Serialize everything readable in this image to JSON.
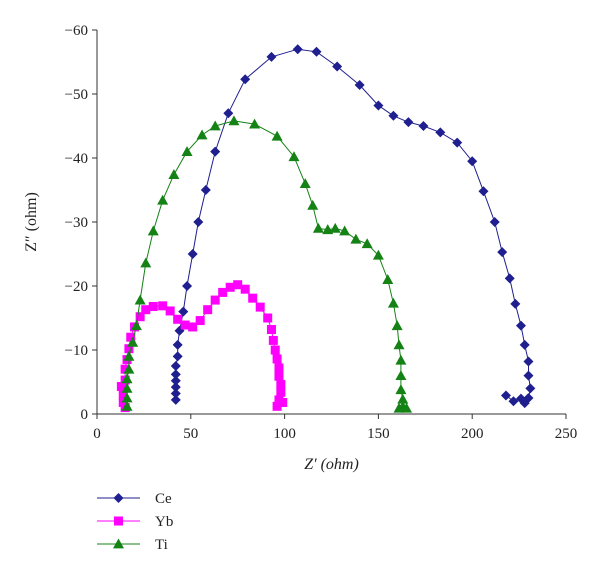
{
  "chart_data": {
    "type": "scatter",
    "xlabel": "Z′ (ohm)",
    "ylabel": "Z″ (ohm)",
    "xlim": [
      0,
      250
    ],
    "ylim": [
      0,
      -60
    ],
    "x_ticks": [
      0,
      50,
      100,
      150,
      200,
      250
    ],
    "y_ticks": [
      0,
      -10,
      -20,
      -30,
      -40,
      -50,
      -60
    ],
    "x_tick_labels": [
      "0",
      "50",
      "100",
      "150",
      "200",
      "250"
    ],
    "y_tick_labels": [
      "0",
      "−10",
      "−20",
      "−30",
      "−40",
      "−50",
      "−60"
    ],
    "grid": false,
    "legend_position": "bottom-left",
    "series": [
      {
        "name": "Ce",
        "color": "#1f1f8f",
        "marker": "diamond",
        "points": [
          [
            42,
            -2.2
          ],
          [
            42,
            -3.2
          ],
          [
            42,
            -4.2
          ],
          [
            42,
            -5.2
          ],
          [
            42,
            -6.2
          ],
          [
            42,
            -7.5
          ],
          [
            43,
            -9
          ],
          [
            43,
            -10.8
          ],
          [
            44,
            -13
          ],
          [
            46,
            -16
          ],
          [
            48,
            -20
          ],
          [
            51,
            -25
          ],
          [
            54,
            -30
          ],
          [
            58,
            -35
          ],
          [
            63,
            -41
          ],
          [
            70,
            -47
          ],
          [
            79,
            -52.3
          ],
          [
            93,
            -55.8
          ],
          [
            107,
            -57
          ],
          [
            117,
            -56.6
          ],
          [
            128,
            -54.3
          ],
          [
            140,
            -51.4
          ],
          [
            150,
            -48.2
          ],
          [
            158,
            -46.6
          ],
          [
            166,
            -45.6
          ],
          [
            174,
            -45
          ],
          [
            183,
            -44
          ],
          [
            192,
            -42.4
          ],
          [
            200,
            -39.5
          ],
          [
            206,
            -34.8
          ],
          [
            212,
            -30
          ],
          [
            216,
            -25.3
          ],
          [
            220,
            -21.2
          ],
          [
            223,
            -17.2
          ],
          [
            226,
            -13.8
          ],
          [
            228,
            -10.8
          ],
          [
            230,
            -8.2
          ],
          [
            230,
            -6
          ],
          [
            231,
            -4
          ],
          [
            230,
            -2.5
          ],
          [
            228,
            -1.7
          ],
          [
            226,
            -2.4
          ],
          [
            222,
            -2
          ],
          [
            218,
            -2.9
          ]
        ]
      },
      {
        "name": "Yb",
        "color": "#ff00ff",
        "marker": "square",
        "points": [
          [
            15,
            -1
          ],
          [
            14,
            -1.8
          ],
          [
            14,
            -3
          ],
          [
            13,
            -4.3
          ],
          [
            15,
            -5.3
          ],
          [
            15,
            -7
          ],
          [
            16,
            -8.5
          ],
          [
            17,
            -10.2
          ],
          [
            18,
            -12
          ],
          [
            20,
            -13.6
          ],
          [
            23,
            -15.2
          ],
          [
            26,
            -16.3
          ],
          [
            30,
            -16.8
          ],
          [
            35,
            -16.9
          ],
          [
            39,
            -16.1
          ],
          [
            43,
            -14.8
          ],
          [
            47,
            -13.9
          ],
          [
            51,
            -13.6
          ],
          [
            55,
            -14.6
          ],
          [
            59,
            -16.3
          ],
          [
            63,
            -17.8
          ],
          [
            67,
            -19
          ],
          [
            71,
            -19.8
          ],
          [
            75,
            -20.2
          ],
          [
            79,
            -19.5
          ],
          [
            83,
            -18.1
          ],
          [
            87,
            -16.7
          ],
          [
            91,
            -15
          ],
          [
            93,
            -13.2
          ],
          [
            94,
            -11.5
          ],
          [
            95,
            -10
          ],
          [
            96,
            -8.6
          ],
          [
            97,
            -7.2
          ],
          [
            97,
            -5.9
          ],
          [
            98,
            -4.6
          ],
          [
            98,
            -3.4
          ],
          [
            97,
            -2.2
          ],
          [
            96,
            -1.2
          ],
          [
            99,
            -1.8
          ]
        ]
      },
      {
        "name": "Ti",
        "color": "#148214",
        "marker": "triangle",
        "points": [
          [
            16,
            -1.2
          ],
          [
            16,
            -2.5
          ],
          [
            16,
            -4
          ],
          [
            16,
            -5.5
          ],
          [
            17,
            -7
          ],
          [
            17,
            -9
          ],
          [
            19,
            -11.2
          ],
          [
            21,
            -13.8
          ],
          [
            23,
            -17.8
          ],
          [
            26,
            -23.6
          ],
          [
            30,
            -28.6
          ],
          [
            35,
            -33.4
          ],
          [
            41,
            -37.4
          ],
          [
            48,
            -41
          ],
          [
            56,
            -43.6
          ],
          [
            63,
            -45
          ],
          [
            73,
            -45.8
          ],
          [
            84,
            -45.3
          ],
          [
            96,
            -43.4
          ],
          [
            105,
            -40.2
          ],
          [
            111,
            -36
          ],
          [
            115,
            -32.6
          ],
          [
            118,
            -29
          ],
          [
            123,
            -28.8
          ],
          [
            127,
            -29
          ],
          [
            132,
            -28.6
          ],
          [
            138,
            -27.3
          ],
          [
            144,
            -26.6
          ],
          [
            150,
            -24.8
          ],
          [
            155,
            -21
          ],
          [
            158,
            -17.3
          ],
          [
            160,
            -13.8
          ],
          [
            161,
            -10.8
          ],
          [
            162,
            -8.4
          ],
          [
            162,
            -6
          ],
          [
            162,
            -3.8
          ],
          [
            163,
            -2.3
          ],
          [
            163,
            -1.2
          ],
          [
            161,
            -0.9
          ],
          [
            165,
            -0.9
          ]
        ]
      }
    ]
  }
}
